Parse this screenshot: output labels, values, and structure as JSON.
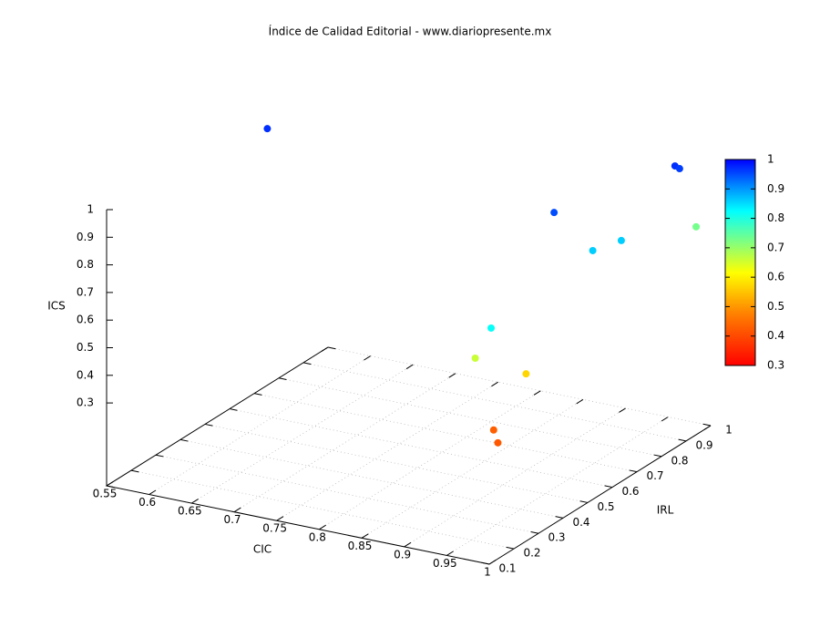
{
  "chart_data": {
    "type": "scatter3d",
    "title": "Índice de Calidad Editorial - www.diariopresente.mx",
    "xlabel": "CIC",
    "ylabel": "IRL",
    "zlabel": "ICS",
    "x": [
      0.566,
      0.98,
      0.984,
      0.931,
      0.995,
      0.984,
      0.991,
      0.988,
      0.954,
      0.986,
      0.982,
      1.0
    ],
    "y": [
      0.698,
      0.924,
      0.929,
      0.602,
      0.654,
      0.576,
      0.972,
      0.149,
      0.202,
      0.298,
      0.18,
      0.135
    ],
    "z": [
      0.97,
      0.97,
      0.96,
      0.95,
      0.86,
      0.86,
      0.73,
      0.82,
      0.66,
      0.57,
      0.43,
      0.42
    ],
    "xlim": [
      0.55,
      1
    ],
    "ylim": [
      0.1,
      1
    ],
    "zlim": [
      0,
      1
    ],
    "xticks": [
      0.55,
      0.6,
      0.65,
      0.7,
      0.75,
      0.8,
      0.85,
      0.9,
      0.95,
      1
    ],
    "yticks": [
      0.1,
      0.2,
      0.3,
      0.4,
      0.5,
      0.6,
      0.7,
      0.8,
      0.9,
      1
    ],
    "zticks": [
      0.3,
      0.4,
      0.5,
      0.6,
      0.7,
      0.8,
      0.9,
      1
    ],
    "cblim": [
      0.3,
      1
    ],
    "cbticks": [
      0.3,
      0.4,
      0.5,
      0.6,
      0.7,
      0.8,
      0.9,
      1
    ],
    "grid": true
  }
}
